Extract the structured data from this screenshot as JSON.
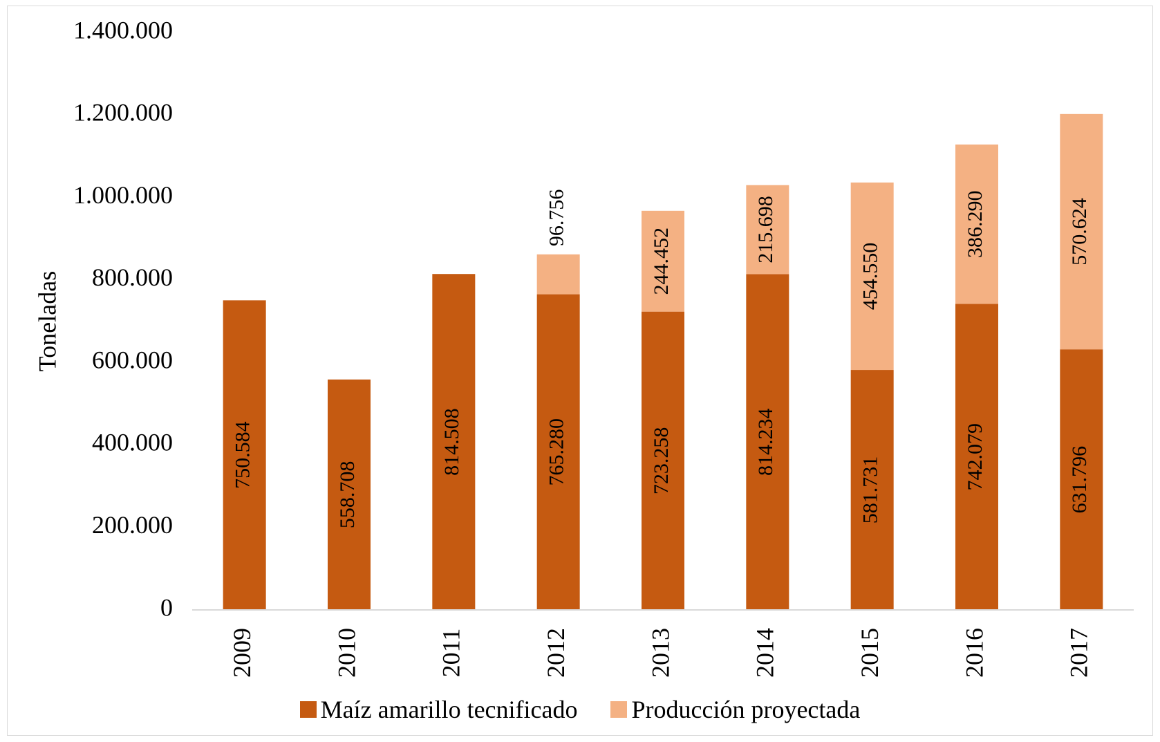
{
  "chart_data": {
    "type": "bar",
    "stacked": true,
    "title": "",
    "xlabel": "",
    "ylabel": "Toneladas",
    "ylim": [
      0,
      1400000
    ],
    "yticks": [
      0,
      200000,
      400000,
      600000,
      800000,
      1000000,
      1200000,
      1400000
    ],
    "ytick_labels": [
      "0",
      "200.000",
      "400.000",
      "600.000",
      "800.000",
      "1.000.000",
      "1.200.000",
      "1.400.000"
    ],
    "categories": [
      "2009",
      "2010",
      "2011",
      "2012",
      "2013",
      "2014",
      "2015",
      "2016",
      "2017"
    ],
    "series": [
      {
        "name": "Maíz amarillo tecnificado",
        "color": "#c55a11",
        "values": [
          750584,
          558708,
          814508,
          765280,
          723258,
          814234,
          581731,
          742079,
          631796
        ],
        "labels": [
          "750.584",
          "558.708",
          "814.508",
          "765.280",
          "723.258",
          "814.234",
          "581.731",
          "742.079",
          "631.796"
        ]
      },
      {
        "name": "Producción proyectada",
        "color": "#f4b183",
        "values": [
          null,
          null,
          null,
          96756,
          244452,
          215698,
          454550,
          386290,
          570624
        ],
        "labels": [
          "",
          "",
          "",
          "96.756",
          "244.452",
          "215.698",
          "454.550",
          "386.290",
          "570.624"
        ]
      }
    ],
    "grid": false,
    "legend_position": "bottom"
  }
}
